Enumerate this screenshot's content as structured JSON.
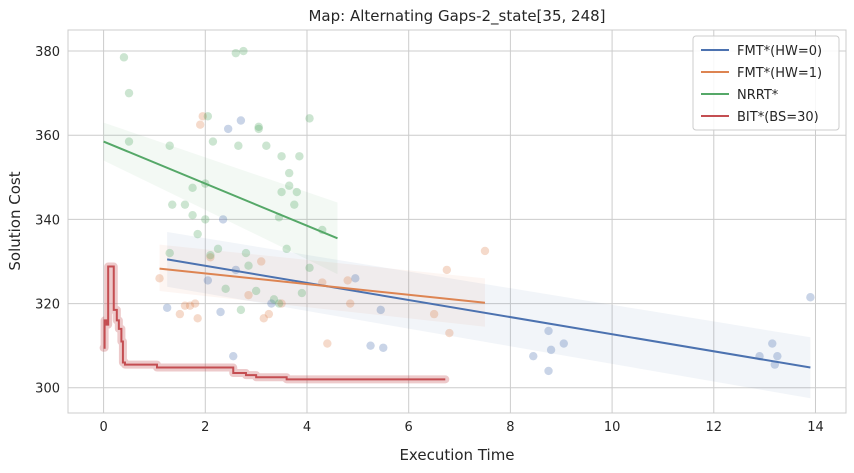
{
  "chart_data": {
    "type": "scatter",
    "title": "Map: Alternating Gaps-2_state[35, 248]",
    "xlabel": "Execution Time",
    "ylabel": "Solution Cost",
    "xlim": [
      -0.7,
      14.6
    ],
    "ylim": [
      294,
      385
    ],
    "x_ticks": [
      0,
      2,
      4,
      6,
      8,
      10,
      12,
      14
    ],
    "y_ticks": [
      300,
      320,
      340,
      360,
      380
    ],
    "grid": true,
    "legend_position": "top-right",
    "series": [
      {
        "name": "FMT*(HW=0)",
        "color": "#4c72b0",
        "points": [
          [
            1.25,
            319
          ],
          [
            2.05,
            325.5
          ],
          [
            2.3,
            318
          ],
          [
            2.35,
            340
          ],
          [
            2.45,
            361.5
          ],
          [
            2.55,
            307.5
          ],
          [
            2.6,
            328
          ],
          [
            2.7,
            363.5
          ],
          [
            3.3,
            320
          ],
          [
            4.95,
            326
          ],
          [
            5.25,
            310
          ],
          [
            5.45,
            318.5
          ],
          [
            5.5,
            309.5
          ],
          [
            8.45,
            307.5
          ],
          [
            8.75,
            313.5
          ],
          [
            8.75,
            304
          ],
          [
            8.8,
            309
          ],
          [
            9.05,
            310.5
          ],
          [
            12.9,
            307.5
          ],
          [
            13.15,
            310.5
          ],
          [
            13.2,
            305.5
          ],
          [
            13.25,
            307.5
          ],
          [
            13.9,
            321.5
          ]
        ],
        "fit": {
          "x": [
            1.25,
            13.9
          ],
          "y": [
            330.5,
            304.8
          ],
          "ci_low": [
            324,
            297.5
          ],
          "ci_high": [
            337,
            312
          ]
        }
      },
      {
        "name": "FMT*(HW=1)",
        "color": "#dd8452",
        "points": [
          [
            1.1,
            326
          ],
          [
            1.5,
            317.5
          ],
          [
            1.6,
            319.5
          ],
          [
            1.7,
            319.5
          ],
          [
            1.8,
            320
          ],
          [
            1.85,
            316.5
          ],
          [
            1.9,
            362.5
          ],
          [
            1.95,
            364.5
          ],
          [
            2.1,
            331
          ],
          [
            2.85,
            322
          ],
          [
            3.1,
            330
          ],
          [
            3.15,
            316.5
          ],
          [
            3.25,
            317.5
          ],
          [
            3.5,
            320
          ],
          [
            4.3,
            325
          ],
          [
            4.4,
            310.5
          ],
          [
            4.8,
            325.5
          ],
          [
            4.85,
            320
          ],
          [
            6.5,
            317.5
          ],
          [
            6.75,
            328
          ],
          [
            6.8,
            313
          ],
          [
            7.5,
            332.5
          ]
        ],
        "fit": {
          "x": [
            1.1,
            7.5
          ],
          "y": [
            328.3,
            320.2
          ],
          "ci_low": [
            323,
            314.5
          ],
          "ci_high": [
            334,
            326
          ]
        }
      },
      {
        "name": "NRRT*",
        "color": "#55a868",
        "points": [
          [
            0.4,
            378.5
          ],
          [
            0.5,
            370
          ],
          [
            0.5,
            358.5
          ],
          [
            1.3,
            357.5
          ],
          [
            1.3,
            332
          ],
          [
            1.35,
            343.5
          ],
          [
            1.6,
            343.5
          ],
          [
            1.75,
            347.5
          ],
          [
            1.75,
            341
          ],
          [
            1.85,
            336.5
          ],
          [
            2,
            340
          ],
          [
            2,
            348.5
          ],
          [
            2.05,
            364.5
          ],
          [
            2.1,
            331.5
          ],
          [
            2.15,
            358.5
          ],
          [
            2.25,
            333
          ],
          [
            2.4,
            323.5
          ],
          [
            2.6,
            379.5
          ],
          [
            2.65,
            357.5
          ],
          [
            2.7,
            318.5
          ],
          [
            2.75,
            380
          ],
          [
            2.8,
            332
          ],
          [
            2.85,
            329
          ],
          [
            3,
            323
          ],
          [
            3.05,
            362
          ],
          [
            3.05,
            361.5
          ],
          [
            3.2,
            357.5
          ],
          [
            3.35,
            321
          ],
          [
            3.45,
            320
          ],
          [
            3.45,
            340.5
          ],
          [
            3.5,
            355
          ],
          [
            3.5,
            346.5
          ],
          [
            3.6,
            333
          ],
          [
            3.65,
            351
          ],
          [
            3.65,
            348
          ],
          [
            3.75,
            343.5
          ],
          [
            3.8,
            346.5
          ],
          [
            3.85,
            355
          ],
          [
            3.9,
            322.5
          ],
          [
            4.05,
            364
          ],
          [
            4.05,
            328.5
          ],
          [
            4.3,
            337.5
          ]
        ],
        "fit": {
          "x": [
            0,
            4.6
          ],
          "y": [
            358.5,
            335.5
          ],
          "ci_low": [
            354,
            327
          ],
          "ci_high": [
            363,
            344
          ]
        }
      },
      {
        "name": "BIT*(BS=30)",
        "color": "#c44e52",
        "steps": [
          [
            0,
            309.5
          ],
          [
            0.02,
            316
          ],
          [
            0.06,
            315
          ],
          [
            0.09,
            328.8
          ],
          [
            0.18,
            328.8
          ],
          [
            0.2,
            318.5
          ],
          [
            0.26,
            316
          ],
          [
            0.3,
            314
          ],
          [
            0.35,
            311
          ],
          [
            0.38,
            306
          ],
          [
            0.42,
            305.5
          ],
          [
            1,
            305.5
          ],
          [
            1.05,
            304.8
          ],
          [
            2.5,
            304.8
          ],
          [
            2.55,
            303.5
          ],
          [
            2.8,
            303
          ],
          [
            3,
            302.5
          ],
          [
            3.5,
            302.5
          ],
          [
            3.6,
            302
          ],
          [
            6.72,
            302
          ]
        ]
      }
    ]
  }
}
